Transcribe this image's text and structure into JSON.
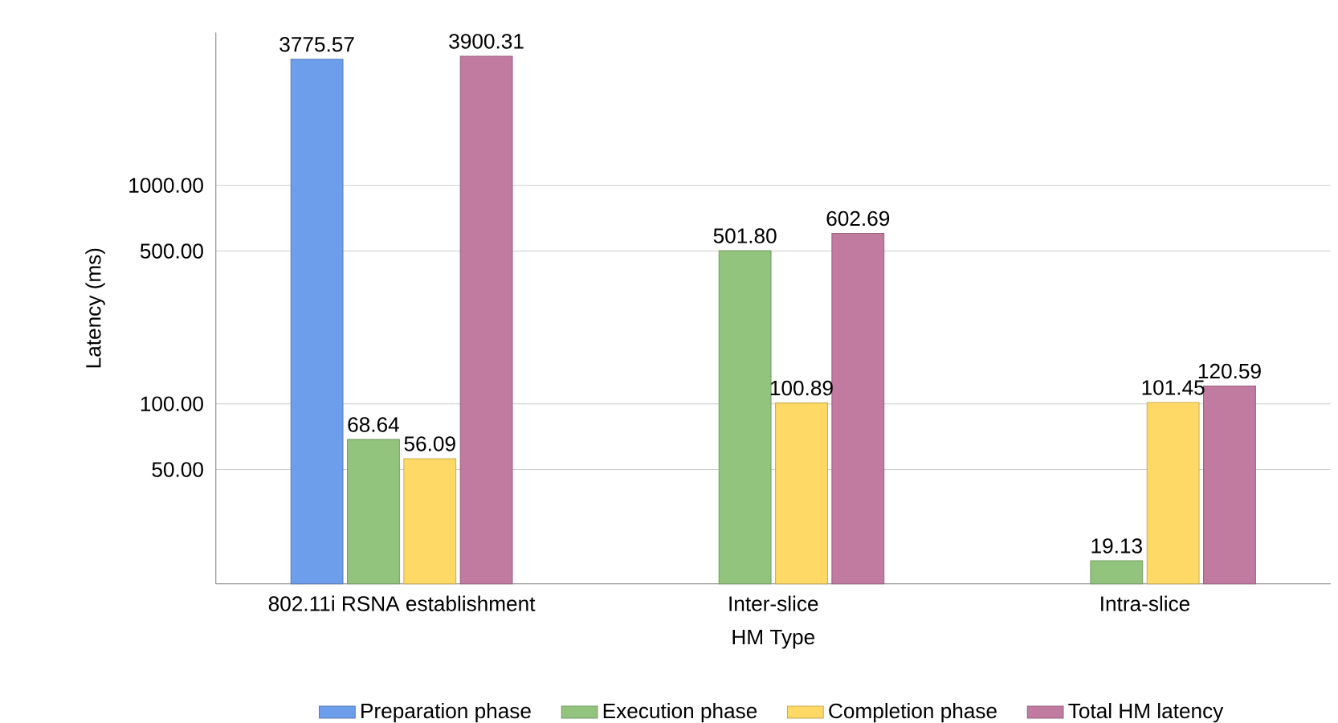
{
  "chart_data": {
    "type": "bar",
    "xlabel": "HM Type",
    "ylabel": "Latency (ms)",
    "categories": [
      "802.11i RSNA establishment",
      "Inter-slice",
      "Intra-slice"
    ],
    "series": [
      {
        "name": "Preparation phase",
        "color": "#6d9eeb",
        "values": [
          3775.57,
          null,
          null
        ],
        "value_labels": [
          "3775.57",
          null,
          null
        ]
      },
      {
        "name": "Execution phase",
        "color": "#93c47d",
        "values": [
          68.64,
          501.8,
          19.13
        ],
        "value_labels": [
          "68.64",
          "501.80",
          "19.13"
        ]
      },
      {
        "name": "Completion phase",
        "color": "#ffd966",
        "values": [
          56.09,
          100.89,
          101.45
        ],
        "value_labels": [
          "56.09",
          "100.89",
          "101.45"
        ]
      },
      {
        "name": "Total HM latency",
        "color": "#c27ba0",
        "values": [
          3900.31,
          602.69,
          120.59
        ],
        "value_labels": [
          "3900.31",
          "602.69",
          "120.59"
        ]
      }
    ],
    "log": "y",
    "ylim": [
      15,
      5000
    ],
    "yticks": [
      {
        "value": 50,
        "label": "50.00"
      },
      {
        "value": 100,
        "label": "100.00"
      },
      {
        "value": 500,
        "label": "500.00"
      },
      {
        "value": 1000,
        "label": "1000.00"
      }
    ],
    "grid": "y",
    "legend": "bottom"
  }
}
